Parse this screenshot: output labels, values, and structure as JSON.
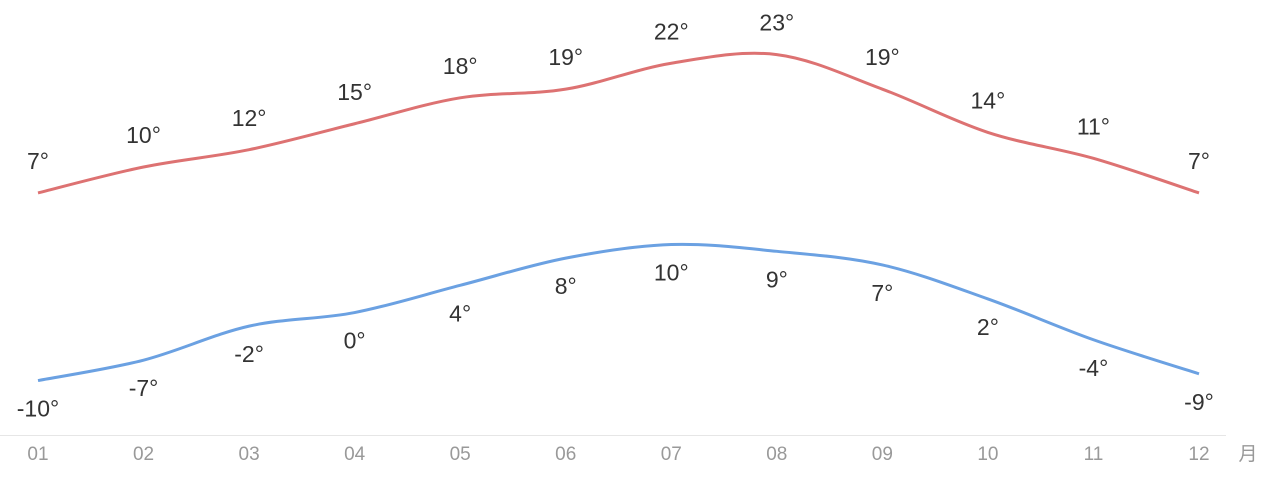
{
  "chart_data": {
    "type": "line",
    "categories": [
      "01",
      "02",
      "03",
      "04",
      "05",
      "06",
      "07",
      "08",
      "09",
      "10",
      "11",
      "12"
    ],
    "x_label": "月",
    "series": [
      {
        "color": "#dd7272",
        "values": [
          7,
          10,
          12,
          15,
          18,
          19,
          22,
          23,
          19,
          14,
          11,
          7
        ],
        "value_labels": [
          "7°",
          "10°",
          "12°",
          "15°",
          "18°",
          "19°",
          "22°",
          "23°",
          "19°",
          "14°",
          "11°",
          "7°"
        ]
      },
      {
        "color": "#6ba1e2",
        "axis": "y2",
        "values": [
          -10,
          -7,
          -2,
          0,
          4,
          8,
          10,
          9,
          7,
          2,
          -4,
          -9
        ],
        "value_labels": [
          "-10°",
          "-7°",
          "-2°",
          "0°",
          "4°",
          "8°",
          "10°",
          "9°",
          "7°",
          "2°",
          "-4°",
          "-9°"
        ]
      }
    ],
    "ylim": [
      -21,
      27
    ],
    "y2lim": [
      -18,
      43
    ]
  }
}
